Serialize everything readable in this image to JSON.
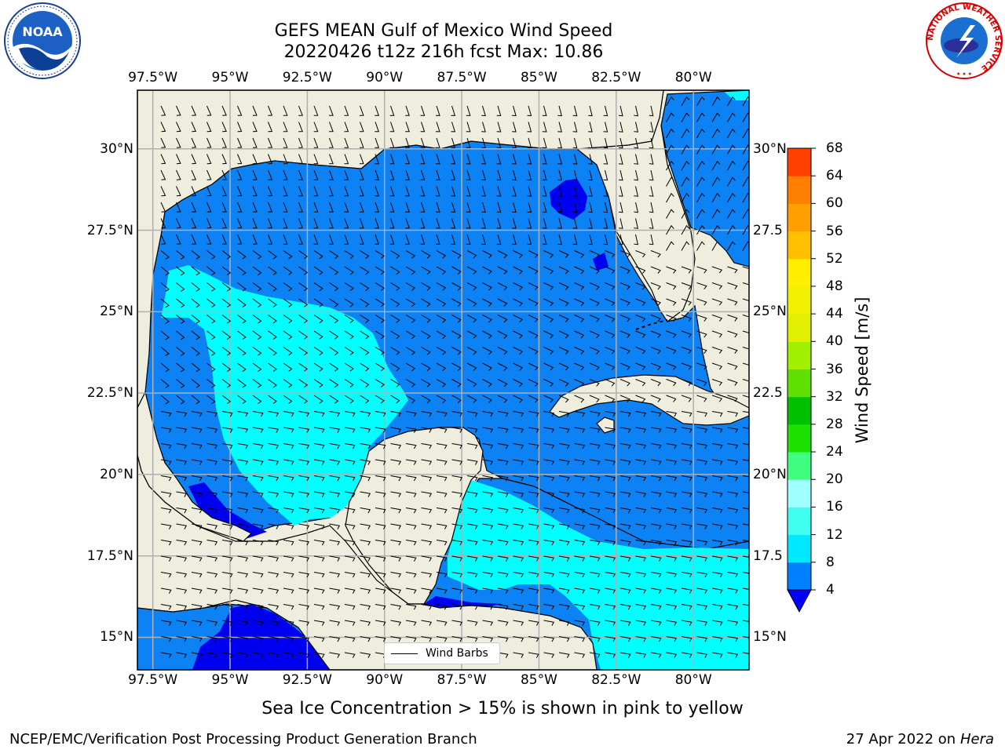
{
  "title_line1": "GEFS MEAN Gulf of Mexico Wind Speed",
  "title_line2": "20220426 t12z 216h fcst   Max: 10.86",
  "map": {
    "lon_labels": [
      "97.5°W",
      "95°W",
      "92.5°W",
      "90°W",
      "87.5°W",
      "85°W",
      "82.5°W",
      "80°W"
    ],
    "lon_values": [
      -97.5,
      -95,
      -92.5,
      -90,
      -87.5,
      -85,
      -82.5,
      -80
    ],
    "lat_labels": [
      "30°N",
      "27.5°N",
      "25°N",
      "22.5°N",
      "20°N",
      "17.5°N",
      "15°N"
    ],
    "lat_values": [
      30,
      27.5,
      25,
      22.5,
      20,
      17.5,
      15
    ],
    "lat_labels_right": [
      "30°N",
      "27.5",
      "25°N",
      "22.5",
      "20°N",
      "17.5",
      "15°N"
    ],
    "extent": {
      "lon_min": -98,
      "lon_max": -78.2,
      "lat_min": 14.0,
      "lat_max": 31.8
    },
    "land_color": "#efedde",
    "grid_color": "#b0b0b0",
    "legend_label": "Wind Barbs"
  },
  "colorbar": {
    "label": "Wind Speed [m/s]",
    "ticks": [
      "68",
      "64",
      "60",
      "56",
      "52",
      "48",
      "44",
      "40",
      "36",
      "32",
      "28",
      "24",
      "20",
      "16",
      "12",
      "8",
      "4"
    ],
    "levels": [
      4,
      8,
      12,
      16,
      20,
      24,
      28,
      32,
      36,
      40,
      44,
      48,
      52,
      56,
      60,
      64,
      68
    ],
    "colors": [
      "#0080ff",
      "#00e8ff",
      "#40fff0",
      "#a0ffff",
      "#40ff80",
      "#20e000",
      "#00c000",
      "#60e000",
      "#a0f000",
      "#e0f000",
      "#f0f000",
      "#ffee00",
      "#ffc000",
      "#ffa000",
      "#ff8000",
      "#ff4000",
      "#ff0000"
    ],
    "extend_below_color": "#0000ff"
  },
  "colors": {
    "wind_4_8": "#0c82f4",
    "wind_8_12": "#00ffff",
    "wind_below_4": "#0000f0"
  },
  "subtitle": "Sea Ice Concentration > 15% is shown in pink to yellow",
  "footer_left": "NCEP/EMC/Verification Post Processing Product Generation Branch",
  "footer_right_date": "27 Apr 2022 on ",
  "footer_right_machine": "Hera",
  "logos": {
    "left": "NOAA",
    "right_ring_text": "NATIONAL WEATHER SERVICE"
  }
}
